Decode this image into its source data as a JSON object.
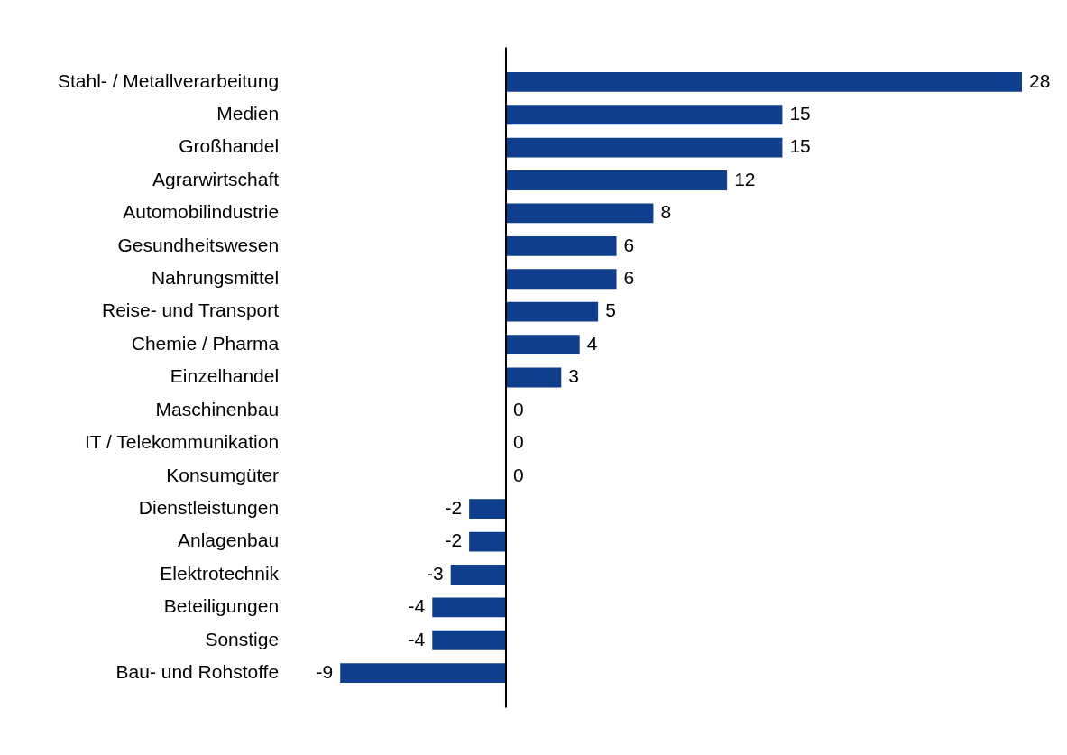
{
  "chart_data": {
    "type": "bar",
    "orientation": "horizontal",
    "categories": [
      "Stahl- / Metallverarbeitung",
      "Medien",
      "Großhandel",
      "Agrarwirtschaft",
      "Automobilindustrie",
      "Gesundheitswesen",
      "Nahrungsmittel",
      "Reise- und Transport",
      "Chemie / Pharma",
      "Einzelhandel",
      "Maschinenbau",
      "IT / Telekommunikation",
      "Konsumgüter",
      "Dienstleistungen",
      "Anlagenbau",
      "Elektrotechnik",
      "Beteiligungen",
      "Sonstige",
      "Bau- und Rohstoffe"
    ],
    "values": [
      28,
      15,
      15,
      12,
      8,
      6,
      6,
      5,
      4,
      3,
      0,
      0,
      0,
      -2,
      -2,
      -3,
      -4,
      -4,
      -9
    ],
    "color": "#0f3e8c",
    "data_labels": true
  }
}
